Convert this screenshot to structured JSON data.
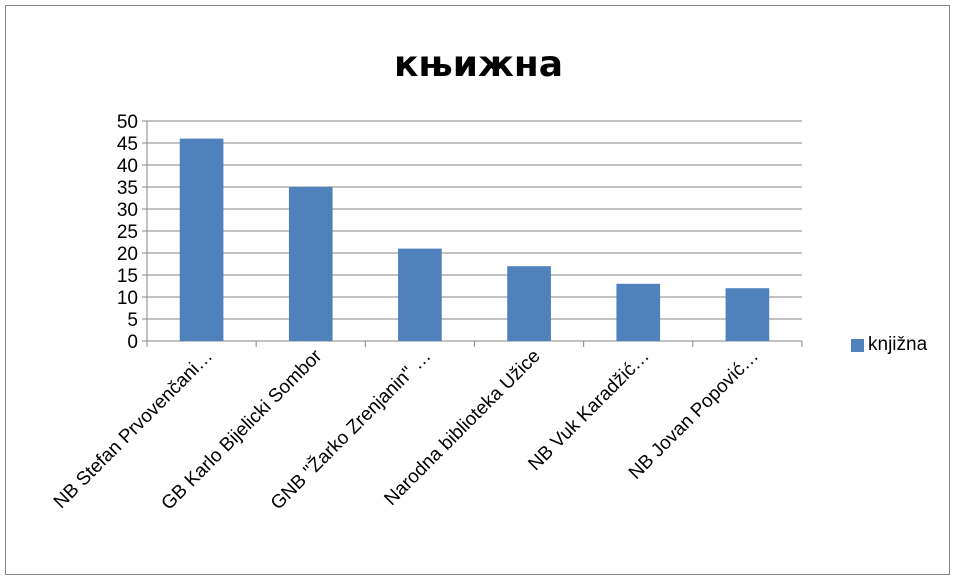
{
  "chart_data": {
    "type": "bar",
    "title": "књижна",
    "categories": [
      "NB Stefan Prvovenčani…",
      "GB Karlo Bijelicki Sombor",
      "GNB \"Žarko Zrenjanin\" …",
      "Narodna biblioteka Užice",
      "NB Vuk Karadžić…",
      "NB Jovan Popović…"
    ],
    "series": [
      {
        "name": "knjižna",
        "values": [
          46,
          35,
          21,
          17,
          13,
          12
        ],
        "color": "#4F81BD"
      }
    ],
    "ylim": [
      0,
      50
    ],
    "yticks": [
      "0",
      "5",
      "10",
      "15",
      "20",
      "25",
      "30",
      "35",
      "40",
      "45",
      "50"
    ],
    "grid": true,
    "legend_position": "right"
  }
}
